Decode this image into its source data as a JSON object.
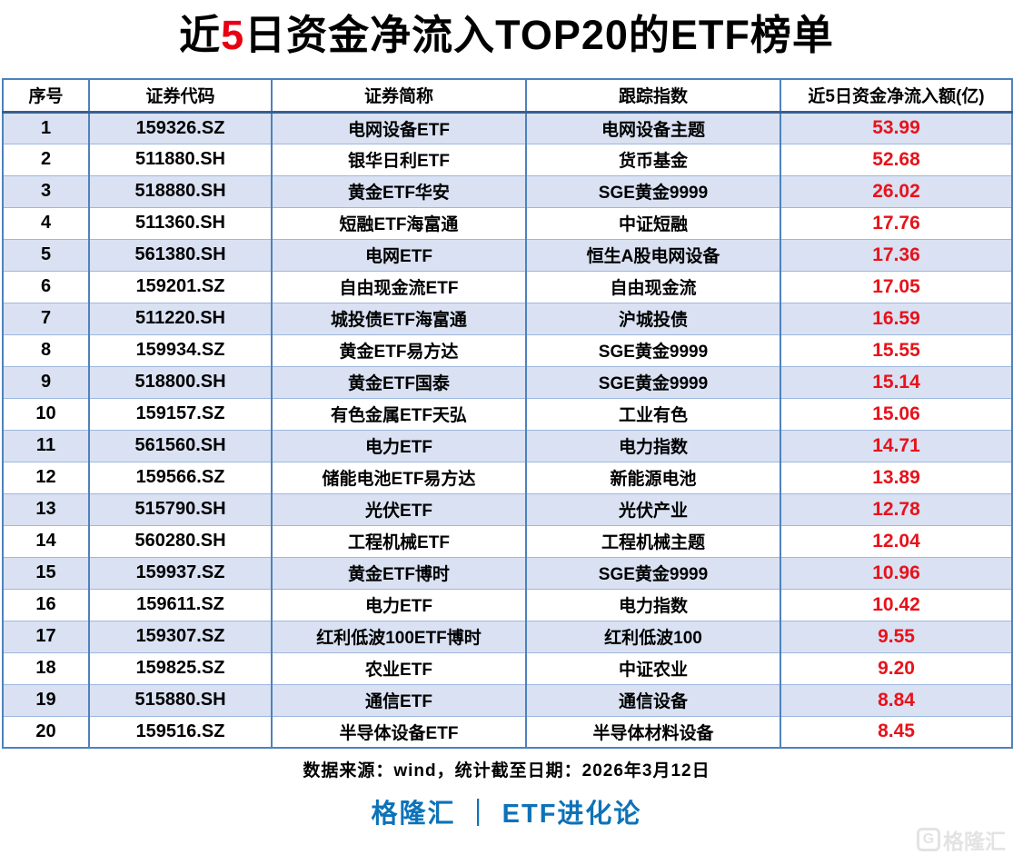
{
  "title": {
    "prefix": "近",
    "highlight": "5",
    "suffix": "日资金净流入TOP20的ETF榜单"
  },
  "table": {
    "headers": [
      "序号",
      "证券代码",
      "证券简称",
      "跟踪指数",
      "近5日资金净流入额(亿)"
    ],
    "rows": [
      {
        "rank": "1",
        "code": "159326.SZ",
        "name": "电网设备ETF",
        "index": "电网设备主题",
        "inflow": "53.99"
      },
      {
        "rank": "2",
        "code": "511880.SH",
        "name": "银华日利ETF",
        "index": "货币基金",
        "inflow": "52.68"
      },
      {
        "rank": "3",
        "code": "518880.SH",
        "name": "黄金ETF华安",
        "index": "SGE黄金9999",
        "inflow": "26.02"
      },
      {
        "rank": "4",
        "code": "511360.SH",
        "name": "短融ETF海富通",
        "index": "中证短融",
        "inflow": "17.76"
      },
      {
        "rank": "5",
        "code": "561380.SH",
        "name": "电网ETF",
        "index": "恒生A股电网设备",
        "inflow": "17.36"
      },
      {
        "rank": "6",
        "code": "159201.SZ",
        "name": "自由现金流ETF",
        "index": "自由现金流",
        "inflow": "17.05"
      },
      {
        "rank": "7",
        "code": "511220.SH",
        "name": "城投债ETF海富通",
        "index": "沪城投债",
        "inflow": "16.59"
      },
      {
        "rank": "8",
        "code": "159934.SZ",
        "name": "黄金ETF易方达",
        "index": "SGE黄金9999",
        "inflow": "15.55"
      },
      {
        "rank": "9",
        "code": "518800.SH",
        "name": "黄金ETF国泰",
        "index": "SGE黄金9999",
        "inflow": "15.14"
      },
      {
        "rank": "10",
        "code": "159157.SZ",
        "name": "有色金属ETF天弘",
        "index": "工业有色",
        "inflow": "15.06"
      },
      {
        "rank": "11",
        "code": "561560.SH",
        "name": "电力ETF",
        "index": "电力指数",
        "inflow": "14.71"
      },
      {
        "rank": "12",
        "code": "159566.SZ",
        "name": "储能电池ETF易方达",
        "index": "新能源电池",
        "inflow": "13.89"
      },
      {
        "rank": "13",
        "code": "515790.SH",
        "name": "光伏ETF",
        "index": "光伏产业",
        "inflow": "12.78"
      },
      {
        "rank": "14",
        "code": "560280.SH",
        "name": "工程机械ETF",
        "index": "工程机械主题",
        "inflow": "12.04"
      },
      {
        "rank": "15",
        "code": "159937.SZ",
        "name": "黄金ETF博时",
        "index": "SGE黄金9999",
        "inflow": "10.96"
      },
      {
        "rank": "16",
        "code": "159611.SZ",
        "name": "电力ETF",
        "index": "电力指数",
        "inflow": "10.42"
      },
      {
        "rank": "17",
        "code": "159307.SZ",
        "name": "红利低波100ETF博时",
        "index": "红利低波100",
        "inflow": "9.55"
      },
      {
        "rank": "18",
        "code": "159825.SZ",
        "name": "农业ETF",
        "index": "中证农业",
        "inflow": "9.20"
      },
      {
        "rank": "19",
        "code": "515880.SH",
        "name": "通信ETF",
        "index": "通信设备",
        "inflow": "8.84"
      },
      {
        "rank": "20",
        "code": "159516.SZ",
        "name": "半导体设备ETF",
        "index": "半导体材料设备",
        "inflow": "8.45"
      }
    ]
  },
  "footer": {
    "source_note": "数据来源：wind，统计截至日期：2026年3月12日",
    "brand": "格隆汇 ｜ ETF进化论"
  },
  "watermark": {
    "logo": "G",
    "text": "格隆汇"
  },
  "colors": {
    "highlight_red": "#e60012",
    "value_red": "#e8121b",
    "row_alt": "#d9e1f2",
    "border": "#4f81bd",
    "border_light": "#9db8de",
    "border_dark": "#365f91",
    "brand_blue": "#0e72b8",
    "watermark_gray": "#e3e3e3"
  }
}
